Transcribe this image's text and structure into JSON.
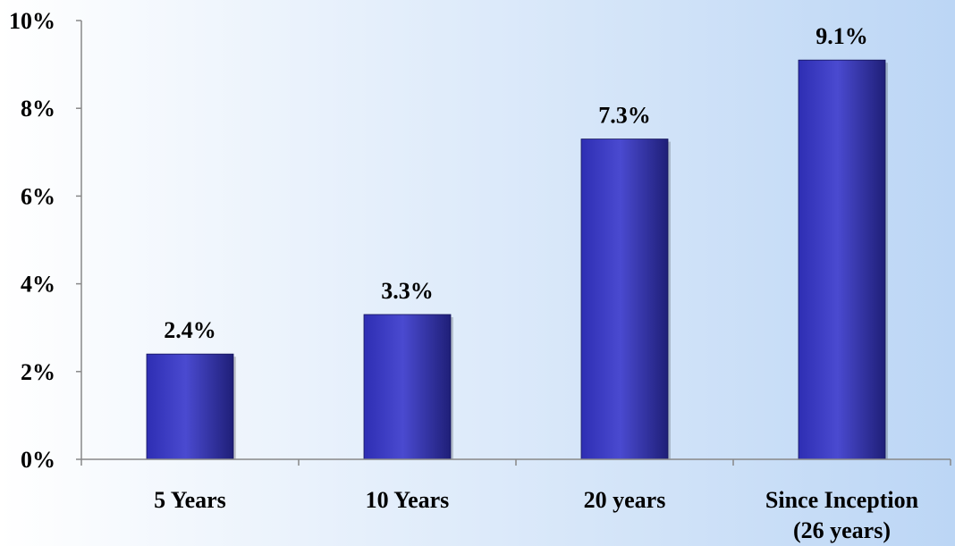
{
  "chart_data": {
    "type": "bar",
    "categories": [
      [
        "5 Years"
      ],
      [
        "10 Years"
      ],
      [
        "20 years"
      ],
      [
        "Since Inception",
        "(26 years)"
      ]
    ],
    "values": [
      2.4,
      3.3,
      7.3,
      9.1
    ],
    "data_labels": [
      "2.4%",
      "3.3%",
      "7.3%",
      "9.1%"
    ],
    "ylim": [
      0,
      10
    ],
    "y_ticks": [
      0,
      2,
      4,
      6,
      8,
      10
    ],
    "y_tick_labels": [
      "0%",
      "2%",
      "4%",
      "6%",
      "8%",
      "10%"
    ],
    "grid": false,
    "colors": {
      "bar_dark": "#1f1f78",
      "bar_mid": "#2e2eb3",
      "bar_light": "#4a4ad0",
      "plot_bg_left": "#ffffff",
      "plot_bg_right": "#bcd6f5",
      "axis": "#888888"
    }
  }
}
